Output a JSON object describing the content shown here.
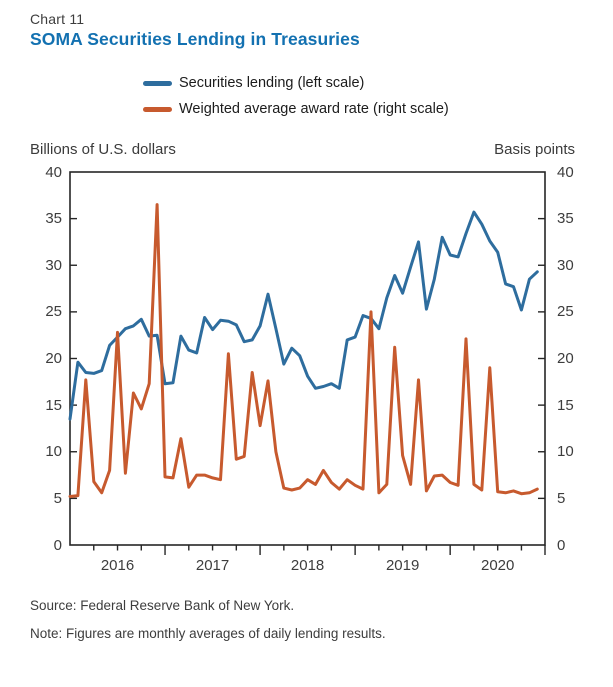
{
  "header": {
    "chart_label": "Chart 11",
    "title": "SOMA Securities Lending in Treasuries",
    "title_color": "#1371b1"
  },
  "legend": {
    "items": [
      {
        "label": "Securities lending (left scale)",
        "color": "#2e6d9e"
      },
      {
        "label": "Weighted average award rate (right scale)",
        "color": "#c75a2e"
      }
    ]
  },
  "axis_headers": {
    "left": "Billions of U.S. dollars",
    "right": "Basis points"
  },
  "footer": {
    "source": "Source: Federal Reserve Bank of New York.",
    "note": "Note: Figures are monthly averages of daily lending results."
  },
  "chart_data": {
    "type": "line",
    "title": "SOMA Securities Lending in Treasuries",
    "x_unit": "month",
    "x_range": [
      "2016-01",
      "2020-12"
    ],
    "x_tick_labels": [
      "2016",
      "2017",
      "2018",
      "2019",
      "2020"
    ],
    "ylim": [
      0,
      40
    ],
    "ytick_values": [
      0,
      5,
      10,
      15,
      20,
      25,
      30,
      35,
      40
    ],
    "ylabel_left": "Billions of U.S. dollars",
    "ylabel_right": "Basis points",
    "grid": false,
    "legend_position": "top",
    "frame_color": "#262626",
    "series": [
      {
        "name": "Securities lending (left scale)",
        "axis": "left",
        "color": "#2e6d9e",
        "values": [
          13.5,
          19.6,
          18.5,
          18.4,
          18.7,
          21.4,
          22.3,
          23.2,
          23.5,
          24.2,
          22.4,
          22.5,
          17.3,
          17.4,
          22.4,
          20.9,
          20.6,
          24.4,
          23.1,
          24.1,
          24.0,
          23.6,
          21.8,
          22.0,
          23.5,
          26.9,
          23.2,
          19.4,
          21.1,
          20.3,
          18.1,
          16.8,
          17.0,
          17.3,
          16.8,
          22.0,
          22.3,
          24.6,
          24.3,
          23.2,
          26.5,
          28.9,
          27.0,
          29.8,
          32.5,
          25.3,
          28.5,
          33.0,
          31.1,
          30.9,
          33.4,
          35.7,
          34.4,
          32.6,
          31.4,
          28.0,
          27.7,
          25.2,
          28.5,
          29.3
        ]
      },
      {
        "name": "Weighted average award rate (right scale)",
        "axis": "right",
        "color": "#c75a2e",
        "values": [
          5.2,
          5.3,
          17.7,
          6.8,
          5.6,
          8.0,
          22.8,
          7.7,
          16.3,
          14.6,
          17.3,
          36.5,
          7.3,
          7.2,
          11.4,
          6.2,
          7.5,
          7.5,
          7.2,
          7.0,
          20.5,
          9.2,
          9.5,
          18.5,
          12.8,
          17.6,
          10.0,
          6.1,
          5.9,
          6.1,
          7.0,
          6.5,
          8.0,
          6.7,
          6.0,
          7.0,
          6.4,
          6.0,
          25.0,
          5.6,
          6.5,
          21.2,
          9.6,
          6.5,
          17.7,
          5.8,
          7.4,
          7.5,
          6.7,
          6.4,
          22.1,
          6.5,
          5.9,
          19.0,
          5.7,
          5.6,
          5.8,
          5.5,
          5.6,
          6.0
        ]
      }
    ]
  }
}
